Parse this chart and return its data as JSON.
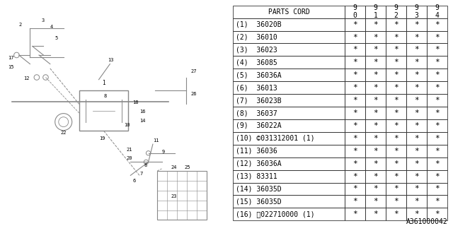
{
  "bg_color": "#ffffff",
  "parts": [
    [
      "(1)  36020B",
      "*",
      "*",
      "*",
      "*",
      "*"
    ],
    [
      "(2)  36010",
      "*",
      "*",
      "*",
      "*",
      "*"
    ],
    [
      "(3)  36023",
      "*",
      "*",
      "*",
      "*",
      "*"
    ],
    [
      "(4)  36085",
      "*",
      "*",
      "*",
      "*",
      "*"
    ],
    [
      "(5)  36036A",
      "*",
      "*",
      "*",
      "*",
      "*"
    ],
    [
      "(6)  36013",
      "*",
      "*",
      "*",
      "*",
      "*"
    ],
    [
      "(7)  36023B",
      "*",
      "*",
      "*",
      "*",
      "*"
    ],
    [
      "(8)  36037",
      "*",
      "*",
      "*",
      "*",
      "*"
    ],
    [
      "(9)  36022A",
      "*",
      "*",
      "*",
      "*",
      "*"
    ],
    [
      "(10) ©031312001 (1)",
      "*",
      "*",
      "*",
      "*",
      "*"
    ],
    [
      "(11) 36036",
      "*",
      "*",
      "*",
      "*",
      "*"
    ],
    [
      "(12) 36036A",
      "*",
      "*",
      "*",
      "*",
      "*"
    ],
    [
      "(13) 83311",
      "*",
      "*",
      "*",
      "*",
      "*"
    ],
    [
      "(14) 36035D",
      "*",
      "*",
      "*",
      "*",
      "*"
    ],
    [
      "(15) 36035D",
      "*",
      "*",
      "*",
      "*",
      "*"
    ],
    [
      "(16) ⓝ022710000 (1)",
      "*",
      "*",
      "*",
      "*",
      "*"
    ]
  ],
  "footer_text": "A361000042",
  "line_color": "#888888",
  "text_color": "#000000",
  "table_font_size": 7.0,
  "header_font_size": 7.0
}
